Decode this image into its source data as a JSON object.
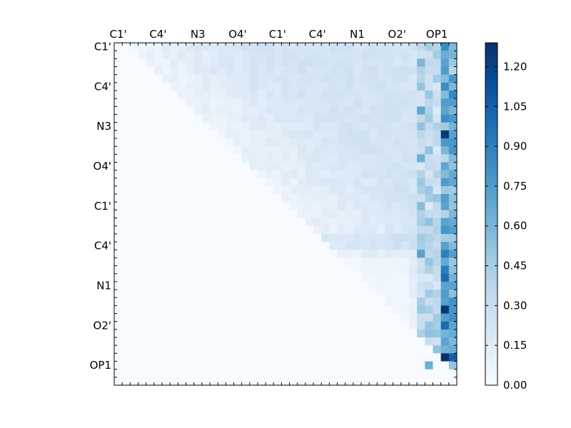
{
  "chart_data": {
    "type": "heatmap",
    "title": "",
    "x_tick_labels": [
      "C1'",
      "C4'",
      "N3",
      "O4'",
      "C1'",
      "C4'",
      "N1",
      "O2'",
      "OP1"
    ],
    "y_tick_labels": [
      "C1'",
      "C4'",
      "N3",
      "O4'",
      "C1'",
      "C4'",
      "N1",
      "O2'",
      "OP1"
    ],
    "grid_size": [
      43,
      43
    ],
    "colorbar": {
      "min": 0.0,
      "max": 1.29,
      "tick_labels": [
        "0.00",
        "0.15",
        "0.30",
        "0.45",
        "0.60",
        "0.75",
        "0.90",
        "1.05",
        "1.20"
      ],
      "colormap": "Blues",
      "colors": [
        "#f7fbff",
        "#deebf7",
        "#c6dbef",
        "#9ecae1",
        "#6baed6",
        "#4292c6",
        "#2171b5",
        "#08519c",
        "#08306b"
      ]
    },
    "matrix_structure": "upper-triangular",
    "column_bands": [
      {
        "label": "OP1",
        "cols": [
          38,
          39,
          40,
          41,
          42
        ],
        "max_value": 1.29
      }
    ],
    "peaks": [
      {
        "row": 11,
        "col": 41,
        "value": 1.25
      },
      {
        "row": 33,
        "col": 41,
        "value": 1.25
      },
      {
        "row": 35,
        "col": 41,
        "value": 1.0
      },
      {
        "row": 39,
        "col": 41,
        "value": 1.29
      },
      {
        "row": 39,
        "col": 42,
        "value": 1.05
      },
      {
        "row": 6,
        "col": 42,
        "value": 0.85
      },
      {
        "row": 26,
        "col": 41,
        "value": 0.9
      },
      {
        "row": 29,
        "col": 41,
        "value": 1.0
      },
      {
        "row": 40,
        "col": 39,
        "value": 0.65
      }
    ]
  }
}
